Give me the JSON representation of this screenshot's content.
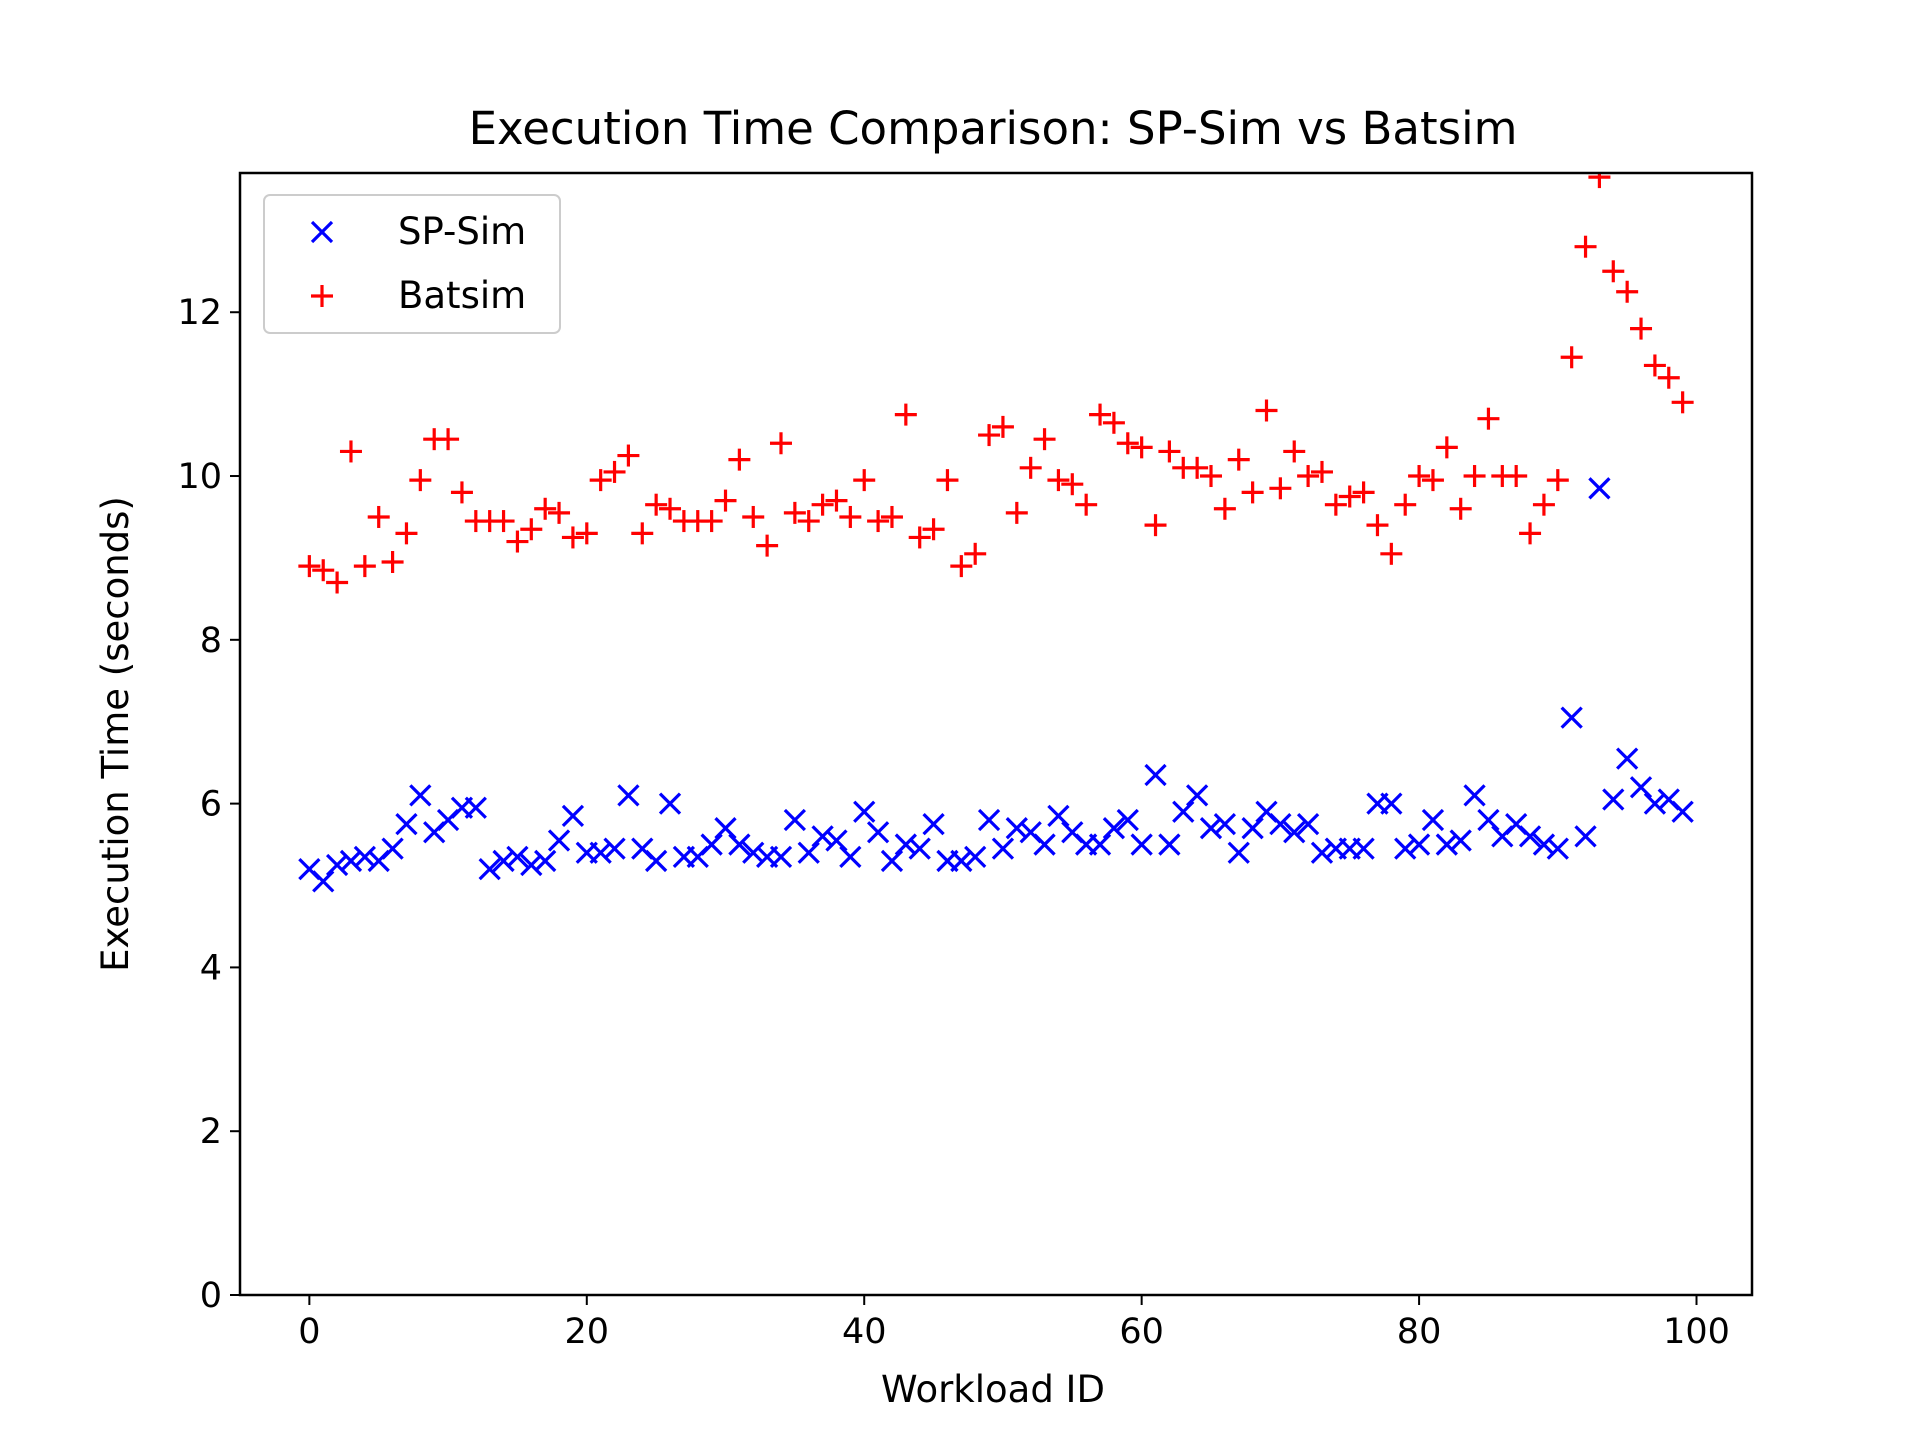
{
  "chart_data": {
    "type": "scatter",
    "title": "Execution Time Comparison: SP-Sim vs Batsim",
    "xlabel": "Workload ID",
    "ylabel": "Execution Time (seconds)",
    "xlim": [
      -5,
      104
    ],
    "ylim": [
      0,
      13.7
    ],
    "x_ticks": [
      0,
      20,
      40,
      60,
      80,
      100
    ],
    "y_ticks": [
      0,
      2,
      4,
      6,
      8,
      10,
      12
    ],
    "grid": false,
    "legend_position": "top-left",
    "x": [
      0,
      1,
      2,
      3,
      4,
      5,
      6,
      7,
      8,
      9,
      10,
      11,
      12,
      13,
      14,
      15,
      16,
      17,
      18,
      19,
      20,
      21,
      22,
      23,
      24,
      25,
      26,
      27,
      28,
      29,
      30,
      31,
      32,
      33,
      34,
      35,
      36,
      37,
      38,
      39,
      40,
      41,
      42,
      43,
      44,
      45,
      46,
      47,
      48,
      49,
      50,
      51,
      52,
      53,
      54,
      55,
      56,
      57,
      58,
      59,
      60,
      61,
      62,
      63,
      64,
      65,
      66,
      67,
      68,
      69,
      70,
      71,
      72,
      73,
      74,
      75,
      76,
      77,
      78,
      79,
      80,
      81,
      82,
      83,
      84,
      85,
      86,
      87,
      88,
      89,
      90,
      91,
      92,
      93,
      94,
      95,
      96,
      97,
      98,
      99
    ],
    "series": [
      {
        "name": "SP-Sim",
        "color": "#0000ff",
        "marker": "x",
        "values": [
          5.2,
          5.05,
          5.25,
          5.3,
          5.35,
          5.3,
          5.45,
          5.75,
          6.1,
          5.65,
          5.8,
          5.95,
          5.95,
          5.2,
          5.3,
          5.35,
          5.25,
          5.3,
          5.55,
          5.85,
          5.4,
          5.4,
          5.45,
          6.1,
          5.45,
          5.3,
          6.0,
          5.35,
          5.35,
          5.5,
          5.7,
          5.5,
          5.4,
          5.35,
          5.35,
          5.8,
          5.4,
          5.6,
          5.55,
          5.35,
          5.9,
          5.65,
          5.3,
          5.5,
          5.45,
          5.75,
          5.3,
          5.3,
          5.35,
          5.8,
          5.45,
          5.7,
          5.65,
          5.5,
          5.85,
          5.65,
          5.5,
          5.5,
          5.7,
          5.8,
          5.5,
          6.35,
          5.5,
          5.9,
          6.1,
          5.7,
          5.75,
          5.4,
          5.7,
          5.9,
          5.75,
          5.65,
          5.75,
          5.4,
          5.45,
          5.45,
          5.45,
          6.0,
          6.0,
          5.45,
          5.5,
          5.8,
          5.5,
          5.55,
          6.1,
          5.8,
          5.6,
          5.75,
          5.6,
          5.5,
          5.45,
          7.05,
          5.6,
          9.85,
          6.05,
          6.55,
          6.2,
          6.0,
          6.05,
          5.9
        ]
      },
      {
        "name": "Batsim",
        "color": "#ff0000",
        "marker": "+",
        "values": [
          8.9,
          8.85,
          8.7,
          10.3,
          8.9,
          9.5,
          8.95,
          9.3,
          9.95,
          10.45,
          10.45,
          9.8,
          9.45,
          9.45,
          9.45,
          9.2,
          9.35,
          9.6,
          9.55,
          9.25,
          9.3,
          9.95,
          10.05,
          10.25,
          9.3,
          9.65,
          9.6,
          9.45,
          9.45,
          9.45,
          9.7,
          10.2,
          9.5,
          9.15,
          10.4,
          9.55,
          9.45,
          9.65,
          9.7,
          9.5,
          9.95,
          9.45,
          9.5,
          10.75,
          9.25,
          9.35,
          9.95,
          8.9,
          9.05,
          10.5,
          10.6,
          9.55,
          10.1,
          10.45,
          9.95,
          9.9,
          9.65,
          10.75,
          10.65,
          10.4,
          10.35,
          9.4,
          10.3,
          10.1,
          10.1,
          10.0,
          9.6,
          10.2,
          9.8,
          10.8,
          9.85,
          10.3,
          10.0,
          10.05,
          9.65,
          9.75,
          9.8,
          9.4,
          9.05,
          9.65,
          10.0,
          9.95,
          10.35,
          9.6,
          10.0,
          10.7,
          10.0,
          10.0,
          9.3,
          9.65,
          9.95,
          11.45,
          12.8,
          13.65,
          12.5,
          12.25,
          11.8,
          11.35,
          11.2,
          10.9
        ]
      }
    ]
  }
}
